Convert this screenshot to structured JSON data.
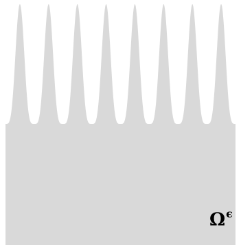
{
  "diagram": {
    "domain_symbol": "Ω",
    "domain_superscript": "ϵ",
    "fill_color": "#d9d9d9",
    "background_color": "#ffffff",
    "boundary": "oscillating",
    "teeth_count": 8
  }
}
